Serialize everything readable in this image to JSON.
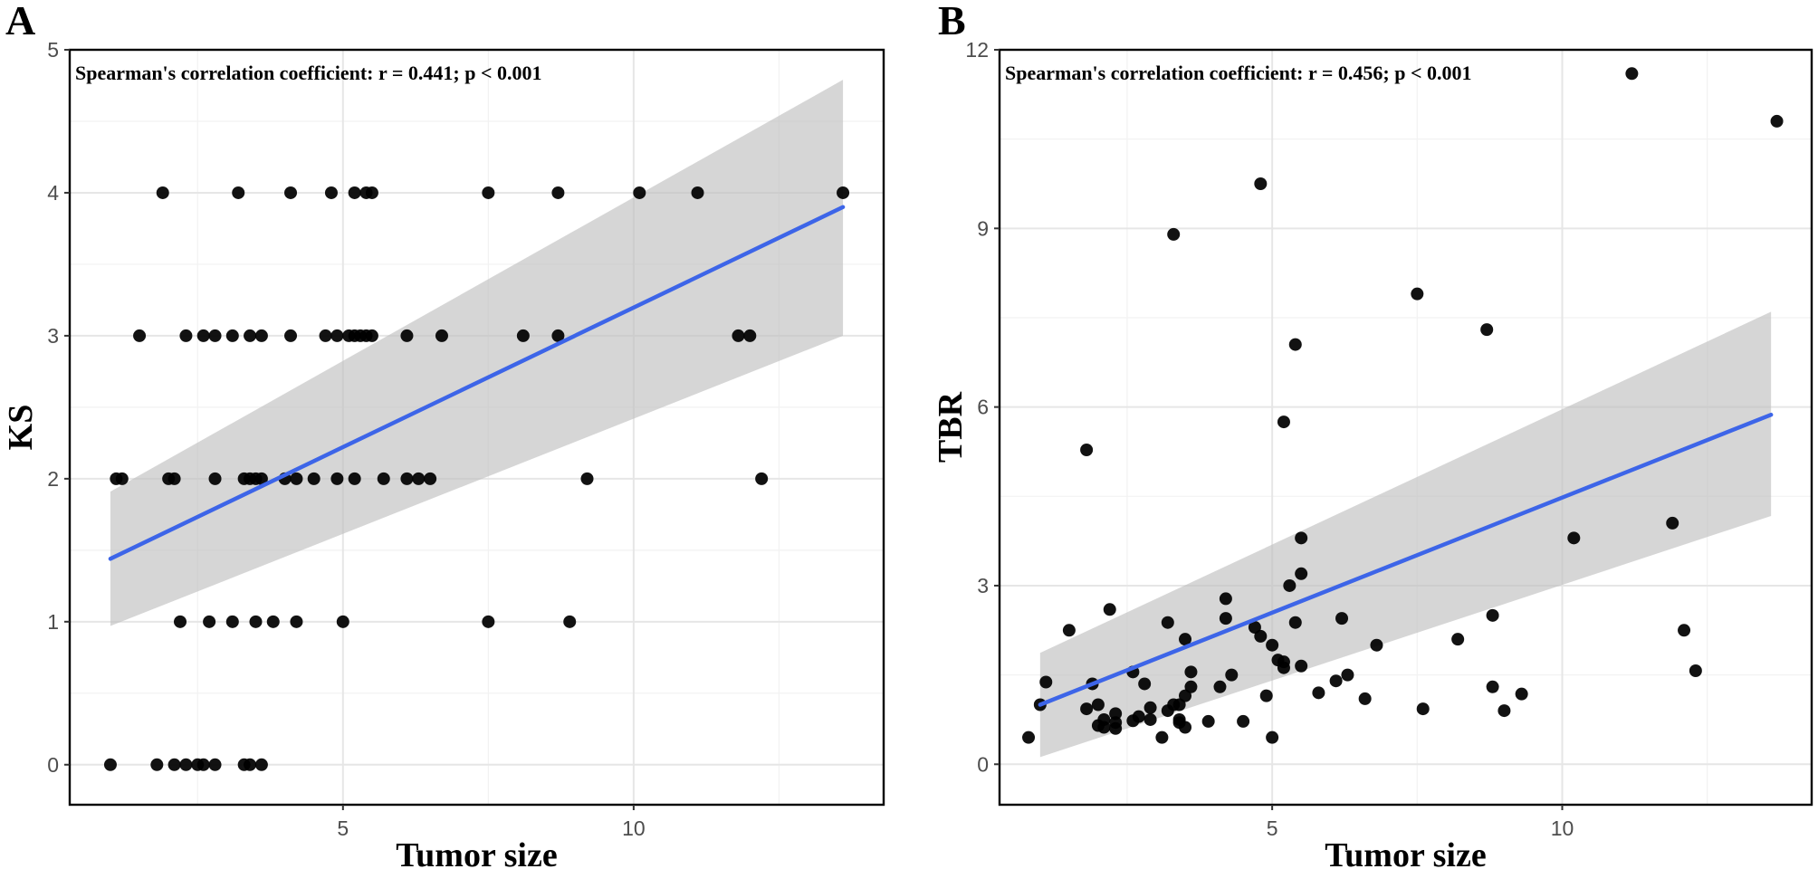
{
  "chart_data": [
    {
      "panel": "A",
      "type": "scatter",
      "xlabel": "Tumor size",
      "ylabel": "KS",
      "annotation": "Spearman's correlation coefficient: r = 0.441; p < 0.001",
      "xlim": [
        0.3,
        14.3
      ],
      "ylim": [
        -0.28,
        5.0
      ],
      "xticks": [
        5,
        10
      ],
      "yticks": [
        0,
        1,
        2,
        3,
        4,
        5
      ],
      "xtick_labels": [
        "5",
        "10"
      ],
      "ytick_labels": [
        "0",
        "1",
        "2",
        "3",
        "4",
        "5"
      ],
      "fit": {
        "x": [
          1.0,
          13.6
        ],
        "y": [
          1.44,
          3.9
        ]
      },
      "ci": {
        "x": [
          1.0,
          13.6
        ],
        "lower": [
          0.97,
          3.0
        ],
        "upper": [
          1.91,
          4.79
        ]
      },
      "points": {
        "x": [
          1.0,
          1.8,
          2.1,
          2.3,
          2.5,
          2.6,
          2.8,
          3.3,
          3.4,
          3.6,
          2.2,
          2.7,
          3.1,
          3.5,
          3.8,
          4.2,
          5.0,
          7.5,
          8.9,
          1.1,
          1.2,
          2.0,
          2.1,
          2.8,
          3.3,
          3.4,
          3.5,
          3.6,
          4.0,
          4.2,
          4.5,
          4.9,
          5.2,
          5.7,
          6.1,
          6.3,
          6.5,
          9.2,
          12.2,
          1.5,
          2.3,
          2.6,
          2.8,
          3.1,
          3.4,
          3.6,
          4.1,
          4.7,
          4.9,
          5.1,
          5.2,
          5.3,
          5.4,
          5.5,
          6.1,
          6.7,
          8.1,
          8.7,
          11.8,
          12.0,
          1.9,
          3.2,
          4.1,
          4.8,
          5.2,
          5.4,
          5.5,
          7.5,
          8.7,
          10.1,
          11.1,
          13.6
        ],
        "y": [
          0,
          0,
          0,
          0,
          0,
          0,
          0,
          0,
          0,
          0,
          1,
          1,
          1,
          1,
          1,
          1,
          1,
          1,
          1,
          2,
          2,
          2,
          2,
          2,
          2,
          2,
          2,
          2,
          2,
          2,
          2,
          2,
          2,
          2,
          2,
          2,
          2,
          2,
          2,
          3,
          3,
          3,
          3,
          3,
          3,
          3,
          3,
          3,
          3,
          3,
          3,
          3,
          3,
          3,
          3,
          3,
          3,
          3,
          3,
          3,
          4,
          4,
          4,
          4,
          4,
          4,
          4,
          4,
          4,
          4,
          4,
          4
        ]
      }
    },
    {
      "panel": "B",
      "type": "scatter",
      "xlabel": "Tumor size",
      "ylabel": "TBR",
      "annotation": "Spearman's correlation coefficient: r = 0.456; p < 0.001",
      "xlim": [
        0.3,
        14.3
      ],
      "ylim": [
        -0.68,
        12.0
      ],
      "xticks": [
        5,
        10
      ],
      "yticks": [
        0,
        3,
        6,
        9,
        12
      ],
      "xtick_labels": [
        "5",
        "10"
      ],
      "ytick_labels": [
        "0",
        "3",
        "6",
        "9",
        "12"
      ],
      "fit": {
        "x": [
          1.0,
          13.6
        ],
        "y": [
          1.0,
          5.87
        ]
      },
      "ci": {
        "x": [
          1.0,
          13.6
        ],
        "lower": [
          0.12,
          4.17
        ],
        "upper": [
          1.87,
          7.6
        ]
      },
      "points": {
        "x": [
          0.8,
          1.0,
          1.1,
          1.5,
          1.8,
          1.9,
          2.0,
          2.0,
          2.1,
          2.1,
          2.2,
          2.3,
          2.3,
          2.3,
          2.6,
          2.6,
          2.7,
          2.8,
          2.9,
          2.9,
          3.1,
          3.2,
          3.2,
          3.3,
          3.4,
          3.4,
          3.4,
          3.5,
          3.5,
          3.5,
          3.6,
          3.6,
          3.9,
          4.1,
          4.2,
          4.2,
          4.3,
          4.5,
          4.7,
          4.8,
          4.9,
          5.0,
          5.0,
          5.1,
          5.2,
          5.2,
          5.2,
          5.3,
          5.4,
          5.5,
          5.5,
          5.5,
          5.8,
          6.1,
          6.2,
          6.3,
          6.6,
          6.8,
          7.6,
          8.2,
          8.8,
          8.8,
          9.0,
          9.3,
          10.2,
          11.2,
          11.9,
          12.1,
          12.3,
          13.7,
          1.8,
          3.3,
          4.8,
          5.4,
          7.5,
          8.7
        ],
        "y": [
          0.45,
          1.0,
          1.38,
          2.25,
          0.93,
          1.35,
          0.65,
          1.0,
          0.75,
          0.62,
          2.6,
          0.6,
          0.7,
          0.85,
          1.55,
          0.73,
          0.8,
          1.35,
          0.75,
          0.95,
          0.45,
          2.38,
          0.9,
          1.0,
          1.0,
          0.75,
          0.7,
          1.15,
          0.62,
          2.1,
          1.3,
          1.55,
          0.72,
          1.3,
          2.78,
          2.45,
          1.5,
          0.72,
          2.3,
          2.15,
          1.15,
          0.45,
          2.0,
          1.75,
          1.62,
          1.72,
          5.75,
          3.0,
          2.38,
          3.2,
          3.8,
          1.65,
          1.2,
          1.4,
          2.45,
          1.5,
          1.1,
          2.0,
          0.93,
          2.1,
          2.5,
          1.3,
          0.9,
          1.18,
          3.8,
          11.6,
          4.05,
          2.25,
          1.57,
          10.8,
          5.28,
          8.9,
          9.75,
          7.05,
          7.9,
          7.3
        ]
      }
    }
  ]
}
